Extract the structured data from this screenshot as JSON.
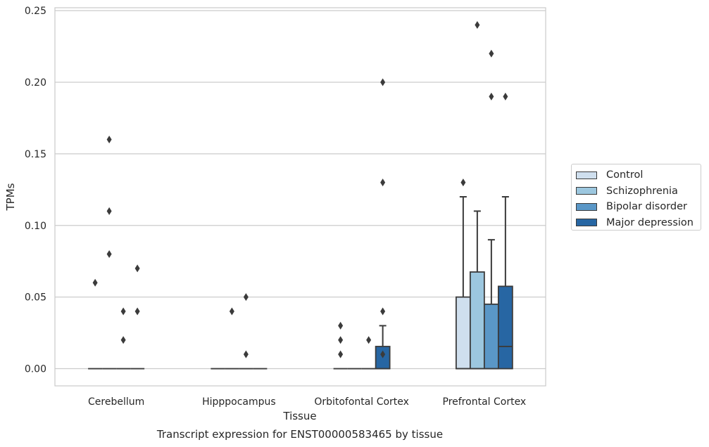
{
  "chart_data": {
    "type": "box",
    "xlabel": "Tissue",
    "ylabel": "TPMs",
    "caption": "Transcript expression for ENST00000583465 by tissue",
    "ylim": [
      -0.012,
      0.252
    ],
    "yticks": [
      "0.00",
      "0.05",
      "0.10",
      "0.15",
      "0.20",
      "0.25"
    ],
    "grid": "horizontal",
    "legend_position": "right",
    "categories": [
      "Cerebellum",
      "Hipppocampus",
      "Orbitofontal Cortex",
      "Prefrontal Cortex"
    ],
    "series": [
      {
        "name": "Control",
        "color": "#cfdfee",
        "boxes": [
          {
            "q1": 0,
            "median": 0,
            "q3": 0,
            "whisker_low": 0,
            "whisker_high": 0,
            "outliers": [
              0.06
            ]
          },
          {
            "q1": 0,
            "median": 0,
            "q3": 0,
            "whisker_low": 0,
            "whisker_high": 0,
            "outliers": []
          },
          {
            "q1": 0,
            "median": 0,
            "q3": 0,
            "whisker_low": 0,
            "whisker_high": 0,
            "outliers": [
              0.01,
              0.02,
              0.03
            ]
          },
          {
            "q1": 0,
            "median": 0,
            "q3": 0.05,
            "whisker_low": 0,
            "whisker_high": 0.12,
            "outliers": [
              0.13
            ]
          }
        ]
      },
      {
        "name": "Schizophrenia",
        "color": "#9cc7df",
        "boxes": [
          {
            "q1": 0,
            "median": 0,
            "q3": 0,
            "whisker_low": 0,
            "whisker_high": 0,
            "outliers": [
              0.08,
              0.11,
              0.16
            ]
          },
          {
            "q1": 0,
            "median": 0,
            "q3": 0,
            "whisker_low": 0,
            "whisker_high": 0,
            "outliers": [
              0.04
            ]
          },
          {
            "q1": 0,
            "median": 0,
            "q3": 0,
            "whisker_low": 0,
            "whisker_high": 0,
            "outliers": []
          },
          {
            "q1": 0,
            "median": 0,
            "q3": 0.0675,
            "whisker_low": 0,
            "whisker_high": 0.11,
            "outliers": [
              0.24
            ]
          }
        ]
      },
      {
        "name": "Bipolar disorder",
        "color": "#5a97c7",
        "boxes": [
          {
            "q1": 0,
            "median": 0,
            "q3": 0,
            "whisker_low": 0,
            "whisker_high": 0,
            "outliers": [
              0.02,
              0.04
            ]
          },
          {
            "q1": 0,
            "median": 0,
            "q3": 0,
            "whisker_low": 0,
            "whisker_high": 0,
            "outliers": [
              0.01,
              0.05
            ]
          },
          {
            "q1": 0,
            "median": 0,
            "q3": 0,
            "whisker_low": 0,
            "whisker_high": 0,
            "outliers": [
              0.02
            ]
          },
          {
            "q1": 0,
            "median": 0,
            "q3": 0.045,
            "whisker_low": 0,
            "whisker_high": 0.09,
            "outliers": [
              0.19,
              0.22
            ]
          }
        ]
      },
      {
        "name": "Major depression",
        "color": "#2766a3",
        "boxes": [
          {
            "q1": 0,
            "median": 0,
            "q3": 0,
            "whisker_low": 0,
            "whisker_high": 0,
            "outliers": [
              0.04,
              0.07
            ]
          },
          {
            "q1": 0,
            "median": 0,
            "q3": 0,
            "whisker_low": 0,
            "whisker_high": 0,
            "outliers": []
          },
          {
            "q1": 0,
            "median": 0,
            "q3": 0.0155,
            "whisker_low": 0,
            "whisker_high": 0.03,
            "outliers": [
              0.01,
              0.04,
              0.13,
              0.2
            ]
          },
          {
            "q1": 0,
            "median": 0.0155,
            "q3": 0.0575,
            "whisker_low": 0,
            "whisker_high": 0.12,
            "outliers": [
              0.19
            ]
          }
        ]
      }
    ]
  }
}
